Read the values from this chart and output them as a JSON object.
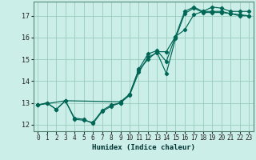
{
  "xlabel": "Humidex (Indice chaleur)",
  "bg_color": "#cceee8",
  "grid_color": "#99ccbb",
  "line_color": "#006655",
  "xlim": [
    -0.5,
    23.5
  ],
  "ylim": [
    11.7,
    17.65
  ],
  "yticks": [
    12,
    13,
    14,
    15,
    16,
    17
  ],
  "xticks": [
    0,
    1,
    2,
    3,
    4,
    5,
    6,
    7,
    8,
    9,
    10,
    11,
    12,
    13,
    14,
    15,
    16,
    17,
    18,
    19,
    20,
    21,
    22,
    23
  ],
  "line1_x": [
    0,
    1,
    2,
    3,
    4,
    5,
    6,
    7,
    8,
    9,
    10,
    11,
    12,
    13,
    14,
    15,
    16,
    17,
    18,
    19,
    20,
    21,
    22,
    23
  ],
  "line1_y": [
    12.9,
    13.0,
    12.7,
    13.1,
    12.3,
    12.25,
    12.05,
    12.6,
    12.85,
    13.0,
    13.35,
    14.4,
    15.1,
    15.3,
    14.35,
    15.95,
    17.1,
    17.35,
    17.15,
    17.15,
    17.15,
    17.1,
    17.0,
    17.0
  ],
  "line2_x": [
    0,
    1,
    2,
    3,
    4,
    5,
    6,
    7,
    8,
    9,
    10,
    11,
    12,
    13,
    14,
    15,
    16,
    17,
    18,
    19,
    20,
    21,
    22,
    23
  ],
  "line2_y": [
    12.9,
    13.0,
    12.7,
    13.1,
    12.25,
    12.2,
    12.1,
    12.65,
    12.9,
    13.0,
    13.4,
    14.55,
    15.25,
    15.4,
    14.9,
    16.05,
    17.2,
    17.4,
    17.2,
    17.2,
    17.2,
    17.1,
    17.05,
    17.0
  ],
  "line3_x": [
    0,
    3,
    9,
    10,
    11,
    12,
    13,
    14,
    15,
    16,
    17,
    18,
    19,
    20,
    21,
    22,
    23
  ],
  "line3_y": [
    12.9,
    13.1,
    13.05,
    13.4,
    14.5,
    15.0,
    15.35,
    15.35,
    16.05,
    16.35,
    17.05,
    17.2,
    17.4,
    17.35,
    17.2,
    17.2,
    17.2
  ]
}
